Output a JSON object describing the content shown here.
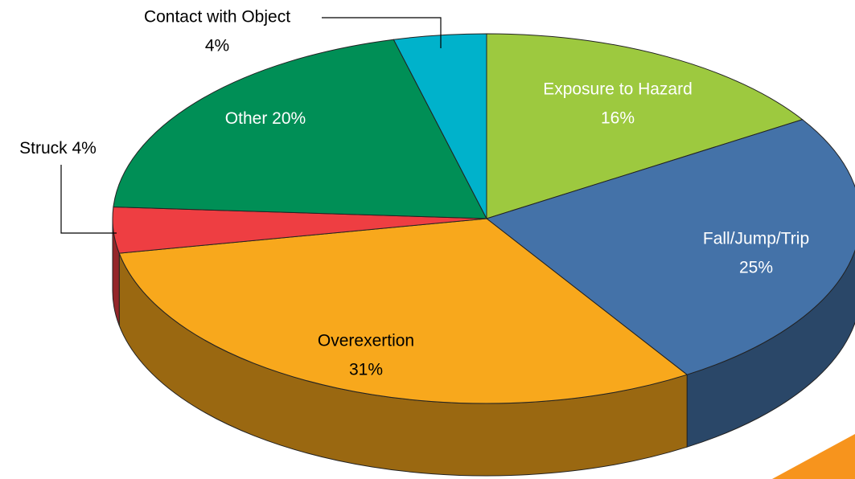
{
  "chart_data": {
    "type": "pie3d",
    "categories": [
      "Exposure to Hazard",
      "Fall/Jump/Trip",
      "Overexertion",
      "Struck",
      "Other",
      "Contact with Object"
    ],
    "values": [
      16,
      25,
      31,
      4,
      20,
      4
    ],
    "value_labels": [
      "16%",
      "25%",
      "31%",
      "4%",
      "20%",
      "4%"
    ],
    "colors": [
      "#9dc93f",
      "#4472a8",
      "#f8a81c",
      "#ee3e42",
      "#008f56",
      "#00b2cb"
    ]
  }
}
